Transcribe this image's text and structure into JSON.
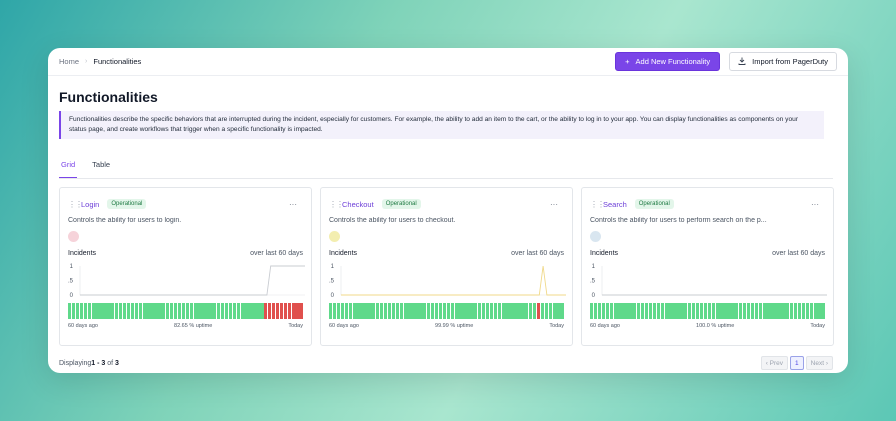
{
  "breadcrumb": {
    "home": "Home",
    "separator": "›",
    "current": "Functionalities"
  },
  "actions": {
    "add_label": "Add New Functionality",
    "add_icon": "+",
    "import_label": "Import from PagerDuty",
    "import_icon": "download-icon"
  },
  "page": {
    "title": "Functionalities",
    "description": "Functionalities describe the specific behaviors that are interrupted during the incident, especially for customers. For example, the ability to add an item to the cart, or the ability to log in to your app. You can display functionalities as components on your status page, and create workflows that trigger when a specific functionality is impacted."
  },
  "tabs": [
    {
      "label": "Grid",
      "active": true
    },
    {
      "label": "Table",
      "active": false
    }
  ],
  "cards": [
    {
      "name": "Login",
      "status": "Operational",
      "more": "···",
      "description": "Controls the ability for users to login.",
      "dot_color": "#f6d3da",
      "incidents_label": "Incidents",
      "range_label": "over last 60 days",
      "y_ticks": [
        "1",
        "0.5",
        "0"
      ],
      "start_label": "60 days ago",
      "uptime_label": "82.65 % uptime",
      "end_label": "Today",
      "line_color": "#c9ccd1",
      "series": [
        0,
        0,
        0,
        0,
        0,
        0,
        0,
        0,
        0,
        0,
        0,
        0,
        0,
        0,
        0,
        0,
        0,
        0,
        0,
        0,
        0,
        0,
        0,
        0,
        0,
        0,
        0,
        0,
        0,
        0,
        0,
        0,
        0,
        0,
        0,
        0,
        0,
        0,
        0,
        0,
        0,
        0,
        0,
        0,
        0,
        0,
        0,
        0,
        0,
        0,
        1,
        1,
        1,
        1,
        1,
        1,
        1,
        1,
        1,
        1
      ],
      "down_from": 50
    },
    {
      "name": "Checkout",
      "status": "Operational",
      "more": "···",
      "description": "Controls the ability for users to checkout.",
      "dot_color": "#f3eeb0",
      "incidents_label": "Incidents",
      "range_label": "over last 60 days",
      "y_ticks": [
        "1",
        "0.5",
        "0"
      ],
      "start_label": "60 days ago",
      "uptime_label": "99.99 % uptime",
      "end_label": "Today",
      "line_color": "#f0d98a",
      "series": [
        0,
        0,
        0,
        0,
        0,
        0,
        0,
        0,
        0,
        0,
        0,
        0,
        0,
        0,
        0,
        0,
        0,
        0,
        0,
        0,
        0,
        0,
        0,
        0,
        0,
        0,
        0,
        0,
        0,
        0,
        0,
        0,
        0,
        0,
        0,
        0,
        0,
        0,
        0,
        0,
        0,
        0,
        0,
        0,
        0,
        0,
        0,
        0,
        0,
        0,
        0,
        0,
        0,
        1,
        0,
        0,
        0,
        0,
        0,
        0
      ],
      "down_days": [
        53
      ]
    },
    {
      "name": "Search",
      "status": "Operational",
      "more": "···",
      "description": "Controls the ability for users to perform search on the p...",
      "dot_color": "#d9e6f0",
      "incidents_label": "Incidents",
      "range_label": "over last 60 days",
      "y_ticks": [
        "1",
        "0.5",
        "0"
      ],
      "start_label": "60 days ago",
      "uptime_label": "100.0 % uptime",
      "end_label": "Today",
      "line_color": "#c9ccd1",
      "series": [
        0,
        0,
        0,
        0,
        0,
        0,
        0,
        0,
        0,
        0,
        0,
        0,
        0,
        0,
        0,
        0,
        0,
        0,
        0,
        0,
        0,
        0,
        0,
        0,
        0,
        0,
        0,
        0,
        0,
        0,
        0,
        0,
        0,
        0,
        0,
        0,
        0,
        0,
        0,
        0,
        0,
        0,
        0,
        0,
        0,
        0,
        0,
        0,
        0,
        0,
        0,
        0,
        0,
        0,
        0,
        0,
        0,
        0,
        0,
        0
      ]
    }
  ],
  "footer": {
    "prefix": "Displaying ",
    "range": "1 - 3",
    "of": " of ",
    "total": "3"
  },
  "pager": {
    "prev": "‹ Prev",
    "page": "1",
    "next": "Next ›"
  },
  "colors": {
    "up": "#5fd98a",
    "down": "#e0504d",
    "accent": "#7a45e8"
  }
}
